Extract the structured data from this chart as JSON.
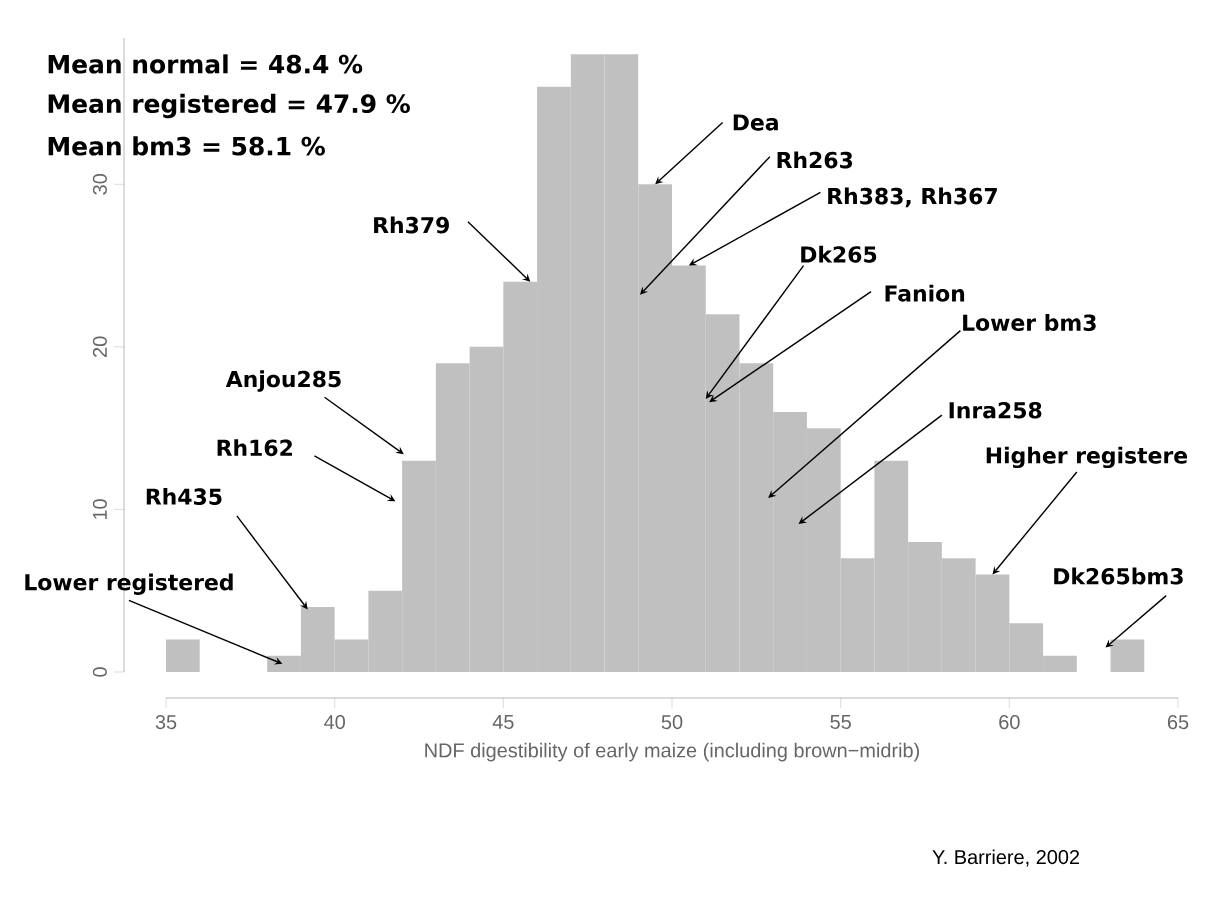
{
  "chart_data": {
    "type": "histogram",
    "bins": [
      35,
      36,
      37,
      38,
      39,
      40,
      41,
      42,
      43,
      44,
      45,
      46,
      47,
      48,
      49,
      50,
      51,
      52,
      53,
      54,
      55,
      56,
      57,
      58,
      59,
      60,
      61,
      62,
      63,
      64
    ],
    "values": [
      2,
      0,
      0,
      1,
      4,
      2,
      5,
      13,
      19,
      20,
      24,
      36,
      38,
      38,
      30,
      25,
      22,
      19,
      16,
      15,
      7,
      13,
      8,
      7,
      6,
      3,
      1,
      0,
      2
    ],
    "color": "#c0c0c0",
    "xlabel": "NDF digestibility of early maize (including brown−midrib)",
    "xlim": [
      35,
      65
    ],
    "xticks": [
      35,
      40,
      45,
      50,
      55,
      60,
      65
    ],
    "ylim": [
      0,
      39
    ],
    "yticks": [
      0,
      10,
      20,
      30
    ],
    "annotations": [
      "Mean normal = 48.4 %",
      "Mean registered = 47.9 %",
      "Mean bm3 = 58.1 %",
      {
        "text": "Rh379",
        "x": 45.8,
        "y": 24
      },
      {
        "text": "Dea",
        "x": 49.5,
        "y": 30
      },
      {
        "text": "Rh263",
        "x": 49.05,
        "y": 23.2
      },
      {
        "text": "Rh383, Rh367",
        "x": 50.5,
        "y": 25
      },
      {
        "text": "Dk265",
        "x": 51.0,
        "y": 16.8
      },
      {
        "text": "Fanion",
        "x": 51.1,
        "y": 16.6
      },
      {
        "text": "Lower bm3",
        "x": 52.85,
        "y": 10.7
      },
      {
        "text": "Inra258",
        "x": 53.75,
        "y": 9.1
      },
      {
        "text": "Higher registere",
        "x": 59.5,
        "y": 6
      },
      {
        "text": "Dk265bm3",
        "x": 62.85,
        "y": 1.5
      },
      {
        "text": "Anjou285",
        "x": 42.05,
        "y": 13.4
      },
      {
        "text": "Rh162",
        "x": 41.8,
        "y": 10.5
      },
      {
        "text": "Rh435",
        "x": 39.2,
        "y": 3.85
      },
      {
        "text": "Lower registered",
        "x": 38.45,
        "y": 0.5
      },
      "Y. Barriere, 2002"
    ]
  }
}
